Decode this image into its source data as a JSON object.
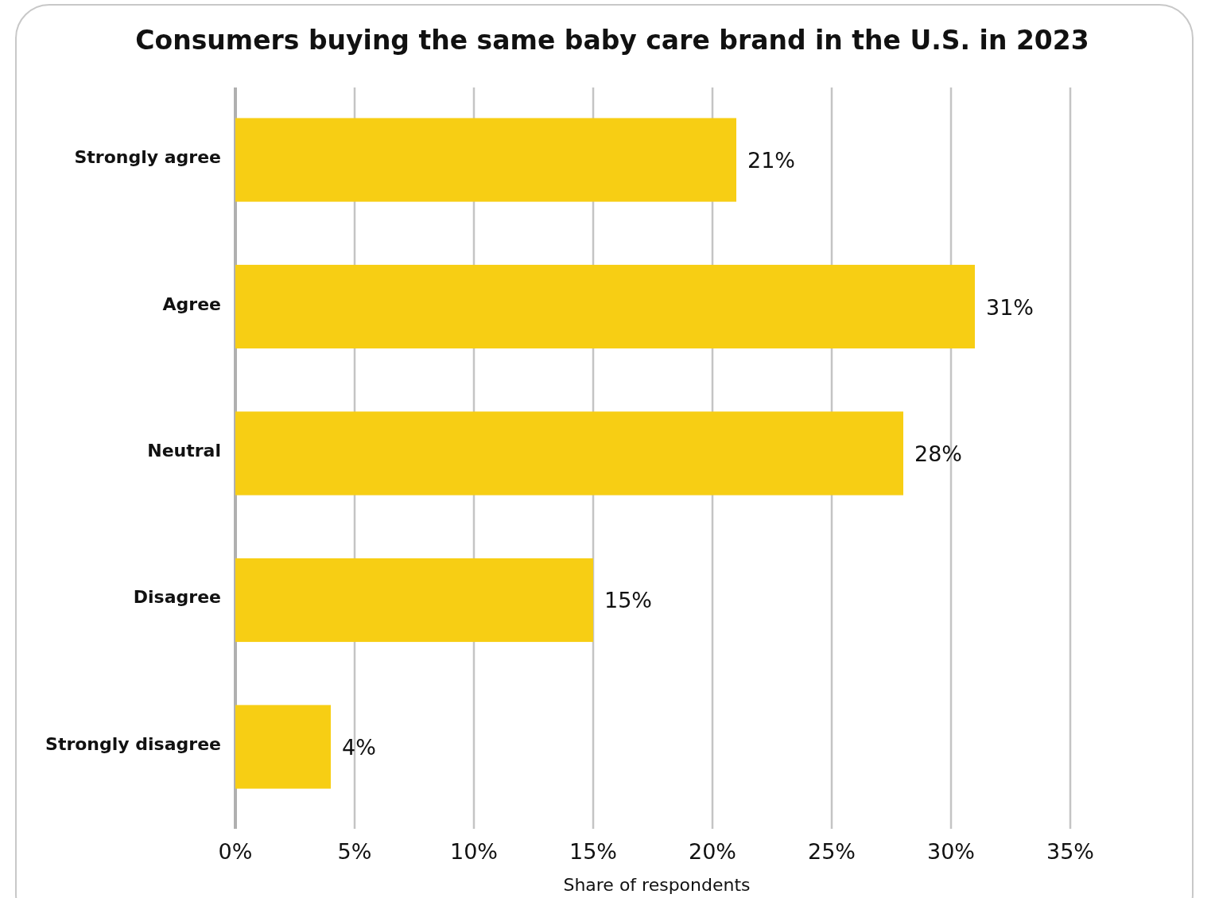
{
  "chart_data": {
    "type": "bar",
    "orientation": "horizontal",
    "title": "Consumers buying the same baby care brand in the U.S. in 2023",
    "xlabel": "Share of respondents",
    "categories": [
      "Strongly agree",
      "Agree",
      "Neutral",
      "Disagree",
      "Strongly disagree"
    ],
    "values": [
      21,
      31,
      28,
      15,
      4
    ],
    "value_labels": [
      "21%",
      "31%",
      "28%",
      "15%",
      "4%"
    ],
    "color": "#f7ce14",
    "xlim": [
      0,
      35
    ],
    "xticks": [
      {
        "value": 0,
        "label": "0%"
      },
      {
        "value": 5,
        "label": "5%"
      },
      {
        "value": 10,
        "label": "10%"
      },
      {
        "value": 15,
        "label": "15%"
      },
      {
        "value": 20,
        "label": "20%"
      },
      {
        "value": 25,
        "label": "25%"
      },
      {
        "value": 30,
        "label": "30%"
      },
      {
        "value": 35,
        "label": "35%"
      }
    ],
    "grid": "x"
  }
}
